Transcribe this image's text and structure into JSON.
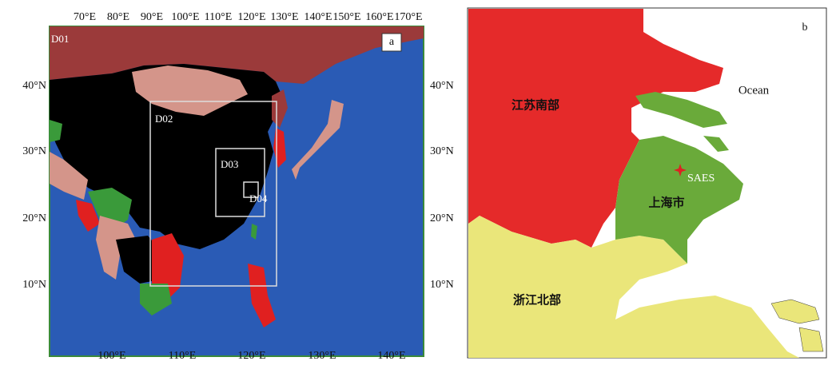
{
  "panel_a": {
    "label": "a",
    "top_lon_labels": [
      "70°E",
      "80°E",
      "90°E",
      "100°E",
      "110°E",
      "120°E",
      "130°E",
      "140°E",
      "150°E",
      "160°E",
      "170°E"
    ],
    "bottom_lon_labels": [
      "100°E",
      "110°E",
      "120°E",
      "130°E",
      "140°E"
    ],
    "left_lat_labels": [
      "40°N",
      "30°N",
      "20°N",
      "10°N"
    ],
    "right_lat_labels": [
      "40°N",
      "30°N",
      "20°N",
      "10°N"
    ],
    "domains": [
      "D01",
      "D02",
      "D03",
      "D04"
    ]
  },
  "panel_b": {
    "label": "b",
    "ocean": "Ocean",
    "site": "SAES",
    "regions": [
      "江苏南部",
      "上海市",
      "浙江北部"
    ]
  }
}
